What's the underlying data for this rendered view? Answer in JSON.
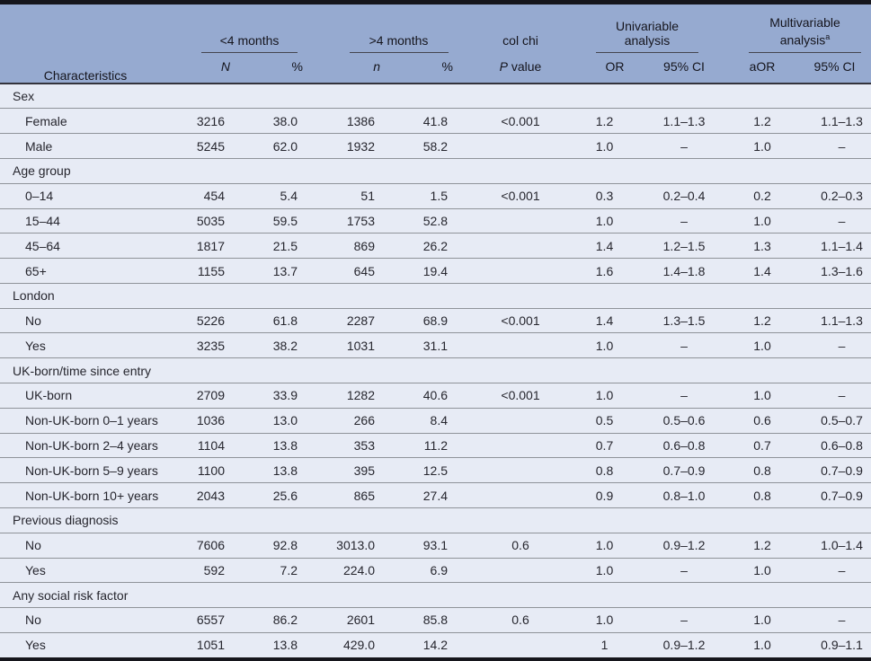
{
  "colors": {
    "header_bg": "#96aad0",
    "row_bg": "#e7ebf5",
    "top_bottom_bar": "#16161c",
    "row_rule": "#8f9399",
    "header_rule": "#33333c",
    "text": "#26262e"
  },
  "table": {
    "header": {
      "characteristics": "Characteristics",
      "group1": {
        "title": "<4 months",
        "col1": "N",
        "col2": "%"
      },
      "group2": {
        "title": ">4 months",
        "col1": "n",
        "col2": "%"
      },
      "pcol": {
        "top": "col chi",
        "p_italic": "P",
        "p_rest": "value"
      },
      "group3": {
        "title": "Univariable analysis",
        "col1": "OR",
        "col2": "95% CI"
      },
      "group4": {
        "title": "Multivariable analysis",
        "sup": "a",
        "col1": "aOR",
        "col2": "95% CI"
      }
    },
    "sections": [
      {
        "label": "Sex",
        "rows": [
          {
            "label": "Female",
            "cells": [
              "3216",
              "38.0",
              "1386",
              "41.8",
              "<0.001",
              "1.2",
              "1.1–1.3",
              "1.2",
              "1.1–1.3"
            ]
          },
          {
            "label": "Male",
            "cells": [
              "5245",
              "62.0",
              "1932",
              "58.2",
              "",
              "1.0",
              "–",
              "1.0",
              "–"
            ]
          }
        ]
      },
      {
        "label": "Age group",
        "rows": [
          {
            "label": "0–14",
            "cells": [
              "454",
              "5.4",
              "51",
              "1.5",
              "<0.001",
              "0.3",
              "0.2–0.4",
              "0.2",
              "0.2–0.3"
            ]
          },
          {
            "label": "15–44",
            "cells": [
              "5035",
              "59.5",
              "1753",
              "52.8",
              "",
              "1.0",
              "–",
              "1.0",
              "–"
            ]
          },
          {
            "label": "45–64",
            "cells": [
              "1817",
              "21.5",
              "869",
              "26.2",
              "",
              "1.4",
              "1.2–1.5",
              "1.3",
              "1.1–1.4"
            ]
          },
          {
            "label": "65+",
            "cells": [
              "1155",
              "13.7",
              "645",
              "19.4",
              "",
              "1.6",
              "1.4–1.8",
              "1.4",
              "1.3–1.6"
            ]
          }
        ]
      },
      {
        "label": "London",
        "rows": [
          {
            "label": "No",
            "cells": [
              "5226",
              "61.8",
              "2287",
              "68.9",
              "<0.001",
              "1.4",
              "1.3–1.5",
              "1.2",
              "1.1–1.3"
            ]
          },
          {
            "label": "Yes",
            "cells": [
              "3235",
              "38.2",
              "1031",
              "31.1",
              "",
              "1.0",
              "–",
              "1.0",
              "–"
            ]
          }
        ]
      },
      {
        "label": "UK-born/time since entry",
        "rows": [
          {
            "label": "UK-born",
            "cells": [
              "2709",
              "33.9",
              "1282",
              "40.6",
              "<0.001",
              "1.0",
              "–",
              "1.0",
              "–"
            ]
          },
          {
            "label": "Non-UK-born 0–1 years",
            "cells": [
              "1036",
              "13.0",
              "266",
              "8.4",
              "",
              "0.5",
              "0.5–0.6",
              "0.6",
              "0.5–0.7"
            ]
          },
          {
            "label": "Non-UK-born 2–4 years",
            "cells": [
              "1104",
              "13.8",
              "353",
              "11.2",
              "",
              "0.7",
              "0.6–0.8",
              "0.7",
              "0.6–0.8"
            ]
          },
          {
            "label": "Non-UK-born 5–9 years",
            "cells": [
              "1100",
              "13.8",
              "395",
              "12.5",
              "",
              "0.8",
              "0.7–0.9",
              "0.8",
              "0.7–0.9"
            ]
          },
          {
            "label": "Non-UK-born 10+ years",
            "cells": [
              "2043",
              "25.6",
              "865",
              "27.4",
              "",
              "0.9",
              "0.8–1.0",
              "0.8",
              "0.7–0.9"
            ]
          }
        ]
      },
      {
        "label": "Previous diagnosis",
        "rows": [
          {
            "label": "No",
            "cells": [
              "7606",
              "92.8",
              "3013.0",
              "93.1",
              "0.6",
              "1.0",
              "0.9–1.2",
              "1.2",
              "1.0–1.4"
            ]
          },
          {
            "label": "Yes",
            "cells": [
              "592",
              "7.2",
              "224.0",
              "6.9",
              "",
              "1.0",
              "–",
              "1.0",
              "–"
            ]
          }
        ]
      },
      {
        "label": "Any social risk factor",
        "rows": [
          {
            "label": "No",
            "cells": [
              "6557",
              "86.2",
              "2601",
              "85.8",
              "0.6",
              "1.0",
              "–",
              "1.0",
              "–"
            ]
          },
          {
            "label": "Yes",
            "cells": [
              "1051",
              "13.8",
              "429.0",
              "14.2",
              "",
              "1",
              "0.9–1.2",
              "1.0",
              "0.9–1.1"
            ]
          }
        ]
      }
    ]
  }
}
